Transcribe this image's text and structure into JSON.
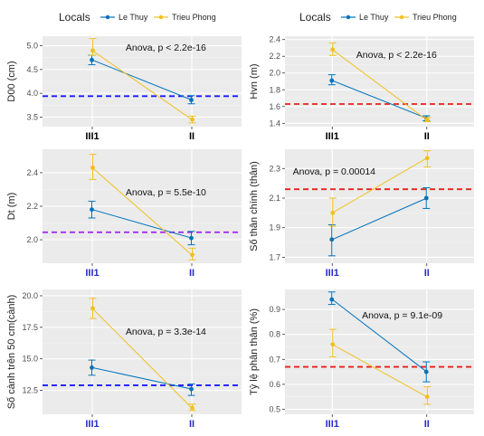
{
  "legend": {
    "title": "Locals",
    "items": [
      {
        "label": "Le Thuy",
        "color": "#0072BD"
      },
      {
        "label": "Trieu Phong",
        "color": "#F0C020"
      }
    ]
  },
  "chart_data": [
    {
      "type": "line",
      "ylabel": "D00 (cm)",
      "categories": [
        "III1",
        "II"
      ],
      "category_color": "#000000",
      "annotation": "Anova, p < 2.2e-16",
      "ylim": [
        3.3,
        5.2
      ],
      "yticks": [
        3.5,
        4.0,
        4.5,
        5.0
      ],
      "ytick_labels": [
        "3.5",
        "4.0",
        "4.5",
        "5.0"
      ],
      "hline": {
        "value": 3.94,
        "color": "#1a1aff"
      },
      "series": [
        {
          "name": "Le Thuy",
          "values": [
            4.7,
            3.86
          ],
          "err_low": [
            4.6,
            3.78
          ],
          "err_high": [
            4.8,
            3.95
          ]
        },
        {
          "name": "Trieu Phong",
          "values": [
            4.9,
            3.45
          ],
          "err_low": [
            4.8,
            3.38
          ],
          "err_high": [
            5.15,
            3.52
          ]
        }
      ]
    },
    {
      "type": "line",
      "ylabel": "Hvn (m)",
      "categories": [
        "III1",
        "II"
      ],
      "category_color": "#000000",
      "annotation": "Anova, p < 2.2e-16",
      "ylim": [
        1.36,
        2.44
      ],
      "yticks": [
        1.4,
        1.6,
        1.8,
        2.0,
        2.2,
        2.4
      ],
      "ytick_labels": [
        "1.4",
        "1.6",
        "1.8",
        "2.0",
        "2.2",
        "2.4"
      ],
      "hline": {
        "value": 1.63,
        "color": "#e8211a"
      },
      "series": [
        {
          "name": "Le Thuy",
          "values": [
            1.91,
            1.46
          ],
          "err_low": [
            1.86,
            1.43
          ],
          "err_high": [
            1.98,
            1.49
          ]
        },
        {
          "name": "Trieu Phong",
          "values": [
            2.28,
            1.44
          ],
          "err_low": [
            2.21,
            1.42
          ],
          "err_high": [
            2.36,
            1.47
          ]
        }
      ]
    },
    {
      "type": "line",
      "ylabel": "Dt (m)",
      "categories": [
        "III1",
        "II"
      ],
      "category_color": "#2a2acc",
      "annotation": "Anova, p = 5.5e-10",
      "ylim": [
        1.86,
        2.54
      ],
      "yticks": [
        2.0,
        2.2,
        2.4
      ],
      "ytick_labels": [
        "2.0",
        "2.2",
        "2.4"
      ],
      "hline": {
        "value": 2.045,
        "color": "#a020f0"
      },
      "series": [
        {
          "name": "Le Thuy",
          "values": [
            2.18,
            2.01
          ],
          "err_low": [
            2.13,
            1.97
          ],
          "err_high": [
            2.23,
            2.05
          ]
        },
        {
          "name": "Trieu Phong",
          "values": [
            2.43,
            1.91
          ],
          "err_low": [
            2.36,
            1.88
          ],
          "err_high": [
            2.51,
            1.95
          ]
        }
      ]
    },
    {
      "type": "line",
      "ylabel": "Số thân chính (thân)",
      "categories": [
        "III1",
        "II"
      ],
      "category_color": "#2a2acc",
      "annotation": "Anova, p = 0.00014",
      "ylim": [
        1.66,
        2.43
      ],
      "yticks": [
        1.7,
        1.9,
        2.1,
        2.3
      ],
      "ytick_labels": [
        "1.7",
        "1.9",
        "2.1",
        "2.3"
      ],
      "hline": {
        "value": 2.16,
        "color": "#e8211a"
      },
      "series": [
        {
          "name": "Le Thuy",
          "values": [
            1.82,
            2.1
          ],
          "err_low": [
            1.71,
            2.03
          ],
          "err_high": [
            1.92,
            2.17
          ]
        },
        {
          "name": "Trieu Phong",
          "values": [
            2.0,
            2.37
          ],
          "err_low": [
            1.91,
            2.31
          ],
          "err_high": [
            2.1,
            2.42
          ]
        }
      ]
    },
    {
      "type": "line",
      "ylabel": "Số cành trên 50 cm(cành)",
      "categories": [
        "III1",
        "II"
      ],
      "category_color": "#2a2acc",
      "annotation": "Anova, p = 3.3e-14",
      "ylim": [
        10.6,
        20.5
      ],
      "yticks": [
        12.5,
        15.0,
        17.5,
        20.0
      ],
      "ytick_labels": [
        "12.5",
        "15.0",
        "17.5",
        "20.0"
      ],
      "hline": {
        "value": 12.9,
        "color": "#1a1aff"
      },
      "series": [
        {
          "name": "Le Thuy",
          "values": [
            14.3,
            12.6
          ],
          "err_low": [
            13.7,
            12.1
          ],
          "err_high": [
            14.9,
            13.0
          ]
        },
        {
          "name": "Trieu Phong",
          "values": [
            19.0,
            11.1
          ],
          "err_low": [
            18.2,
            10.9
          ],
          "err_high": [
            19.8,
            11.4
          ]
        }
      ]
    },
    {
      "type": "line",
      "ylabel": "Tỷ lệ phân thân (%)",
      "categories": [
        "III1",
        "II"
      ],
      "category_color": "#2a2acc",
      "annotation": "Anova, p = 9.1e-09",
      "ylim": [
        0.48,
        0.98
      ],
      "yticks": [
        0.5,
        0.6,
        0.7,
        0.8,
        0.9
      ],
      "ytick_labels": [
        "0.5",
        "0.6",
        "0.7",
        "0.8",
        "0.9"
      ],
      "hline": {
        "value": 0.67,
        "color": "#e8211a"
      },
      "series": [
        {
          "name": "Le Thuy",
          "values": [
            0.94,
            0.65
          ],
          "err_low": [
            0.92,
            0.61
          ],
          "err_high": [
            0.97,
            0.69
          ]
        },
        {
          "name": "Trieu Phong",
          "values": [
            0.76,
            0.55
          ],
          "err_low": [
            0.71,
            0.52
          ],
          "err_high": [
            0.82,
            0.59
          ]
        }
      ]
    }
  ]
}
